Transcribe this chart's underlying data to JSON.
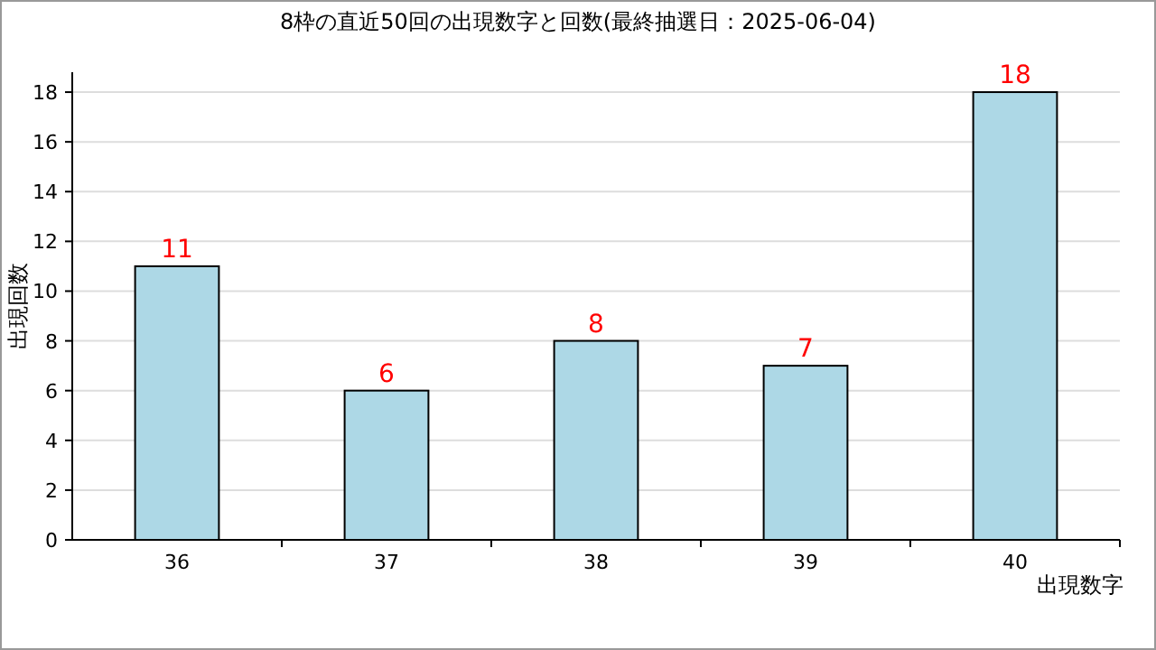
{
  "chart_data": {
    "type": "bar",
    "title": "8枠の直近50回の出現数字と回数(最終抽選日：2025-06-04)",
    "xlabel": "出現数字",
    "ylabel": "出現回数",
    "categories": [
      "36",
      "37",
      "38",
      "39",
      "40"
    ],
    "values": [
      11,
      6,
      8,
      7,
      18
    ],
    "color": "#add8e6",
    "ylim": [
      0,
      18.8
    ],
    "yticks": [
      0,
      2,
      4,
      6,
      8,
      10,
      12,
      14,
      16,
      18
    ],
    "grid": "y",
    "data_labels": true
  }
}
